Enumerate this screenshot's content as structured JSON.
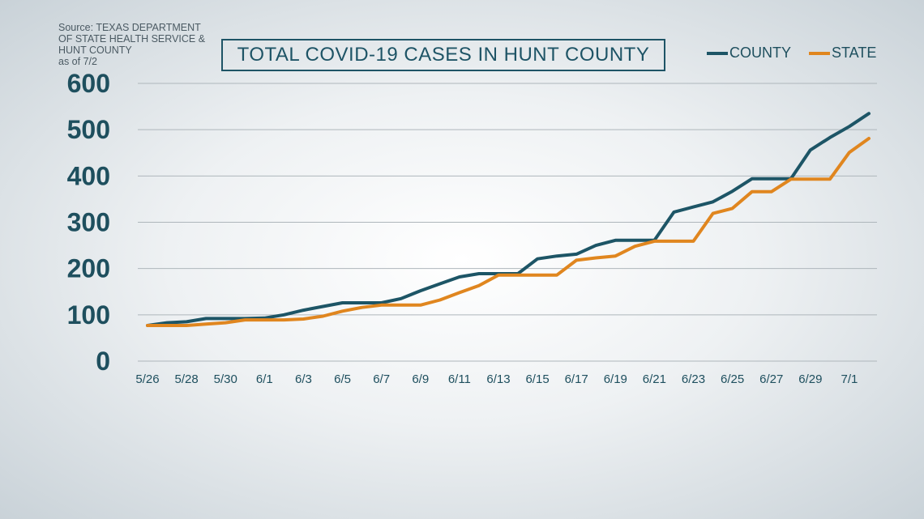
{
  "source": {
    "lines": [
      "Source: TEXAS DEPARTMENT",
      "OF STATE HEALTH SERVICE &",
      "HUNT COUNTY",
      "as of 7/2"
    ]
  },
  "chart_data": {
    "type": "line",
    "title": "TOTAL COVID-19 CASES IN HUNT COUNTY",
    "xlabel": "",
    "ylabel": "",
    "ylim": [
      0,
      600
    ],
    "yticks": [
      0,
      100,
      200,
      300,
      400,
      500,
      600
    ],
    "grid": true,
    "legend_position": "top-right",
    "x": [
      "5/26",
      "5/27",
      "5/28",
      "5/29",
      "5/30",
      "5/31",
      "6/1",
      "6/2",
      "6/3",
      "6/4",
      "6/5",
      "6/6",
      "6/7",
      "6/8",
      "6/9",
      "6/10",
      "6/11",
      "6/12",
      "6/13",
      "6/14",
      "6/15",
      "6/16",
      "6/17",
      "6/18",
      "6/19",
      "6/20",
      "6/21",
      "6/22",
      "6/23",
      "6/24",
      "6/25",
      "6/26",
      "6/27",
      "6/28",
      "6/29",
      "6/30",
      "7/1",
      "7/2"
    ],
    "xtick_labels": [
      "5/26",
      "5/28",
      "5/30",
      "6/1",
      "6/3",
      "6/5",
      "6/7",
      "6/9",
      "6/11",
      "6/13",
      "6/15",
      "6/17",
      "6/19",
      "6/21",
      "6/23",
      "6/25",
      "6/27",
      "6/29",
      "7/1"
    ],
    "series": [
      {
        "name": "COUNTY",
        "color": "#1d5566",
        "values": [
          77,
          83,
          85,
          92,
          92,
          92,
          93,
          100,
          110,
          118,
          126,
          126,
          126,
          135,
          152,
          167,
          182,
          189,
          189,
          189,
          221,
          227,
          231,
          250,
          261,
          261,
          261,
          322,
          333,
          344,
          367,
          394,
          394,
          394,
          456,
          483,
          507,
          535
        ]
      },
      {
        "name": "STATE",
        "color": "#e0861f",
        "values": [
          77,
          77,
          77,
          80,
          83,
          89,
          89,
          89,
          91,
          97,
          108,
          116,
          121,
          121,
          121,
          132,
          148,
          163,
          186,
          186,
          186,
          186,
          218,
          223,
          227,
          248,
          259,
          259,
          259,
          319,
          330,
          366,
          366,
          393,
          393,
          393,
          451,
          481
        ]
      }
    ]
  }
}
